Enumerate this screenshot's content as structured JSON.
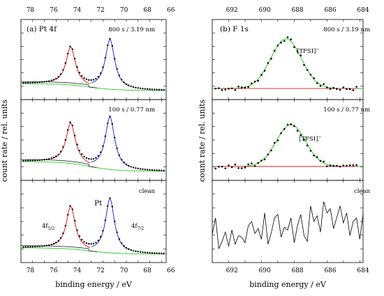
{
  "chart_data": [
    {
      "id": "pt4f",
      "type": "line",
      "panel_label": "(a) Pt 4f",
      "xlabel": "binding energy / eV",
      "ylabel": "count rate / rel. units",
      "xlim": [
        78.8,
        66.4
      ],
      "x_ticks": [
        78,
        76,
        74,
        72,
        70,
        68,
        66
      ],
      "x_tick_labels": [
        "78",
        "76",
        "74",
        "72",
        "70",
        "68",
        "66"
      ],
      "ylim": [
        0,
        1
      ],
      "grid": false,
      "legend": "none",
      "colors": {
        "data": "#000000",
        "fit_5_2": "#d81e1e",
        "fit_7_2": "#2233cc",
        "background": "#22cc22",
        "envelope": "#000000"
      },
      "subpanels": [
        {
          "label": "800 s / 3.19 nm",
          "peak_5_2": {
            "center": 74.55,
            "amplitude": 0.55
          },
          "peak_7_2": {
            "center": 71.2,
            "amplitude": 0.72
          },
          "fwhm": 0.9,
          "background": {
            "high_be": 0.14,
            "low_be": 0.05
          },
          "tails_5_2": [
            74.6,
            74.2,
            74.4,
            74.2,
            74.4,
            74.4
          ],
          "tails_7_2": [
            71.9,
            71.5,
            71.7,
            71.5,
            71.7,
            71.7
          ]
        },
        {
          "label": "100 s / 0.77 nm",
          "peak_5_2": {
            "center": 74.55,
            "amplitude": 0.58
          },
          "peak_7_2": {
            "center": 71.2,
            "amplitude": 0.75
          },
          "fwhm": 0.9,
          "background": {
            "high_be": 0.18,
            "low_be": 0.05
          }
        },
        {
          "label": "clean",
          "peak_5_2": {
            "center": 74.55,
            "amplitude": 0.6,
            "label": "4f5/2"
          },
          "peak_7_2": {
            "center": 71.2,
            "amplitude": 0.76,
            "label": "4f7/2"
          },
          "fwhm": 0.85,
          "background": {
            "high_be": 0.12,
            "low_be": 0.04
          },
          "element_label": "Pt"
        }
      ]
    },
    {
      "id": "f1s",
      "type": "line",
      "panel_label": "(b) F 1s",
      "xlabel": "binding energy / eV",
      "xlim": [
        693.2,
        684.0
      ],
      "x_ticks": [
        692,
        690,
        688,
        686,
        684
      ],
      "x_tick_labels": [
        "692",
        "690",
        "688",
        "686",
        "684"
      ],
      "ylim": [
        0,
        1
      ],
      "grid": false,
      "legend": "none",
      "colors": {
        "data": "#000000",
        "fit": "#22cc22",
        "background": "#d81e1e"
      },
      "subpanels": [
        {
          "label": "800 s / 3.19 nm",
          "component_label": "[TFSI]",
          "component_superscript": "−",
          "peak": {
            "center": 688.7,
            "amplitude": 0.72,
            "fwhm": 2.2
          },
          "background_level": 0.08
        },
        {
          "label": "100 s / 0.77 nm",
          "component_label": "[TFSI]",
          "component_superscript": "−",
          "peak": {
            "center": 688.4,
            "amplitude": 0.6,
            "fwhm": 2.1
          },
          "background_level": 0.12
        },
        {
          "label": "clean",
          "noise_only": true,
          "x": [
            693.2,
            693.0,
            692.8,
            692.6,
            692.4,
            692.2,
            692.0,
            691.8,
            691.6,
            691.4,
            691.2,
            691.0,
            690.8,
            690.6,
            690.4,
            690.2,
            690.0,
            689.8,
            689.6,
            689.4,
            689.2,
            689.0,
            688.8,
            688.6,
            688.4,
            688.2,
            688.0,
            687.8,
            687.6,
            687.4,
            687.2,
            687.0,
            686.8,
            686.6,
            686.4,
            686.2,
            686.0,
            685.8,
            685.6,
            685.4,
            685.2,
            685.0,
            684.8,
            684.6,
            684.4,
            684.2,
            684.0
          ],
          "y": [
            0.32,
            0.55,
            0.12,
            0.22,
            0.35,
            0.15,
            0.38,
            0.18,
            0.3,
            0.28,
            0.2,
            0.44,
            0.5,
            0.33,
            0.4,
            0.25,
            0.62,
            0.18,
            0.34,
            0.55,
            0.6,
            0.28,
            0.42,
            0.38,
            0.55,
            0.2,
            0.44,
            0.6,
            0.3,
            0.22,
            0.72,
            0.5,
            0.58,
            0.35,
            0.78,
            0.62,
            0.68,
            0.4,
            0.56,
            0.72,
            0.48,
            0.62,
            0.3,
            0.5,
            0.55,
            0.25,
            0.6
          ]
        }
      ]
    }
  ]
}
